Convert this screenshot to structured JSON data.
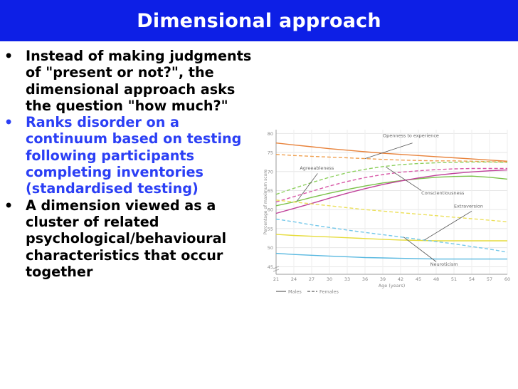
{
  "slide": {
    "title": "Dimensional approach",
    "bullets": [
      {
        "text": "Instead of making judgments of \"present or not?\", the dimensional approach asks the question \"how much?\"",
        "color": "#000000"
      },
      {
        "text": "Ranks disorder on a continuum based on testing following participants completing inventories (standardised testing)",
        "color": "#2b3ff5"
      },
      {
        "text": "A dimension viewed as a cluster of related psychological/behavioural characteristics that occur together",
        "color": "#000000"
      }
    ]
  },
  "chart_data": {
    "type": "line",
    "title": "",
    "xlabel": "Age (years)",
    "ylabel": "Percentage of maximum score",
    "x": [
      21,
      24,
      27,
      30,
      33,
      36,
      39,
      42,
      45,
      48,
      51,
      54,
      57,
      60
    ],
    "xticks": [
      "21",
      "24",
      "27",
      "30",
      "33",
      "36",
      "39",
      "42",
      "45",
      "48",
      "51",
      "54",
      "57",
      "60"
    ],
    "yticks": [
      "45",
      "50",
      "55",
      "60",
      "65",
      "70",
      "75",
      "80"
    ],
    "xlim": [
      21,
      60
    ],
    "ylim": [
      43,
      81
    ],
    "grid": true,
    "legend": {
      "males": "Males",
      "females": "Females",
      "position": "bottom-left"
    },
    "series": [
      {
        "name": "Openness to experience",
        "sex": "Males",
        "color": "#e8823a",
        "dashed": false,
        "values": [
          77.5,
          77.0,
          76.5,
          76.0,
          75.6,
          75.2,
          74.8,
          74.5,
          74.2,
          73.9,
          73.6,
          73.3,
          73.0,
          72.7
        ]
      },
      {
        "name": "Openness to experience",
        "sex": "Females",
        "color": "#f0a050",
        "dashed": true,
        "values": [
          74.5,
          74.2,
          74.0,
          73.8,
          73.6,
          73.4,
          73.2,
          73.0,
          72.9,
          72.8,
          72.8,
          72.7,
          72.6,
          72.5
        ]
      },
      {
        "name": "Agreeableness",
        "sex": "Males",
        "color": "#7bc24a",
        "dashed": false,
        "values": [
          61.0,
          62.0,
          63.2,
          64.3,
          65.3,
          66.2,
          67.0,
          67.6,
          68.1,
          68.5,
          68.7,
          68.8,
          68.5,
          68.0
        ]
      },
      {
        "name": "Agreeableness",
        "sex": "Females",
        "color": "#8fd060",
        "dashed": true,
        "values": [
          64.0,
          65.6,
          67.1,
          68.5,
          69.7,
          70.6,
          71.3,
          71.8,
          72.1,
          72.3,
          72.4,
          72.5,
          72.5,
          72.4
        ]
      },
      {
        "name": "Conscientiousness",
        "sex": "Males",
        "color": "#c0409a",
        "dashed": false,
        "values": [
          59.0,
          60.3,
          61.6,
          63.0,
          64.3,
          65.5,
          66.6,
          67.5,
          68.3,
          69.0,
          69.5,
          69.9,
          70.2,
          70.4
        ]
      },
      {
        "name": "Conscientiousness",
        "sex": "Females",
        "color": "#d85aa8",
        "dashed": true,
        "values": [
          62.0,
          63.4,
          64.8,
          66.2,
          67.4,
          68.4,
          69.2,
          69.8,
          70.2,
          70.5,
          70.7,
          70.8,
          70.8,
          70.8
        ]
      },
      {
        "name": "Extraversion",
        "sex": "Males",
        "color": "#e6dc3c",
        "dashed": false,
        "values": [
          53.5,
          53.2,
          53.0,
          52.8,
          52.6,
          52.4,
          52.2,
          52.0,
          51.9,
          51.8,
          51.8,
          51.8,
          51.8,
          51.8
        ]
      },
      {
        "name": "Extraversion",
        "sex": "Females",
        "color": "#ece05a",
        "dashed": true,
        "values": [
          62.5,
          62.0,
          61.5,
          61.0,
          60.5,
          60.0,
          59.6,
          59.2,
          58.8,
          58.4,
          58.0,
          57.6,
          57.2,
          56.8
        ]
      },
      {
        "name": "Neuroticism",
        "sex": "Males",
        "color": "#58b8e0",
        "dashed": false,
        "values": [
          48.5,
          48.2,
          48.0,
          47.8,
          47.6,
          47.4,
          47.3,
          47.2,
          47.1,
          47.0,
          47.0,
          47.0,
          47.0,
          47.0
        ]
      },
      {
        "name": "Neuroticism",
        "sex": "Females",
        "color": "#74c8ea",
        "dashed": true,
        "values": [
          57.5,
          56.8,
          56.0,
          55.3,
          54.6,
          54.0,
          53.4,
          52.8,
          52.2,
          51.6,
          51.0,
          50.3,
          49.6,
          48.8
        ]
      }
    ],
    "annotations": [
      {
        "text": "Openness to experience",
        "x": 39,
        "y": 79
      },
      {
        "text": "Agreeableness",
        "x": 25,
        "y": 70.5
      },
      {
        "text": "Conscientiousness",
        "x": 45.5,
        "y": 64
      },
      {
        "text": "Extraversion",
        "x": 51,
        "y": 60.5
      },
      {
        "text": "Neuroticism",
        "x": 47,
        "y": 45.2
      }
    ]
  }
}
